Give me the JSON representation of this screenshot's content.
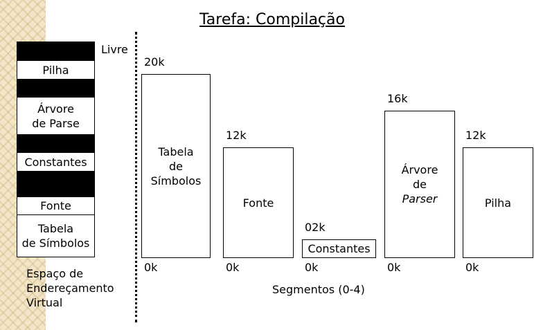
{
  "title": "Tarefa: Compilação",
  "virtual_space": {
    "free_label": "Livre",
    "rows": [
      {
        "kind": "free",
        "label": ""
      },
      {
        "kind": "data",
        "label": "Pilha"
      },
      {
        "kind": "free",
        "label": ""
      },
      {
        "kind": "data",
        "label": "Árvore\nde Parse"
      },
      {
        "kind": "free",
        "label": ""
      },
      {
        "kind": "data",
        "label": "Constantes"
      },
      {
        "kind": "free",
        "label": ""
      },
      {
        "kind": "data",
        "label": "Fonte"
      },
      {
        "kind": "data",
        "label": "Tabela\nde Símbolos"
      }
    ],
    "caption_lines": [
      "Espaço de",
      "Endereçamento",
      "Virtual"
    ]
  },
  "segments": {
    "caption": "Segmentos (0-4)",
    "items": [
      {
        "name": "Tabela\nde\nSímbolos",
        "size_label": "20k",
        "size": 20,
        "zero_label": "0k",
        "italic_line": -1
      },
      {
        "name": "Fonte",
        "size_label": "12k",
        "size": 12,
        "zero_label": "0k",
        "italic_line": -1
      },
      {
        "name": "Constantes",
        "size_label": "02k",
        "size": 2,
        "zero_label": "0k",
        "italic_line": -1
      },
      {
        "name": "Árvore\nde\nParser",
        "size_label": "16k",
        "size": 16,
        "zero_label": "0k",
        "italic_line": 2
      },
      {
        "name": "Pilha",
        "size_label": "12k",
        "size": 12,
        "zero_label": "0k",
        "italic_line": -1
      }
    ]
  }
}
